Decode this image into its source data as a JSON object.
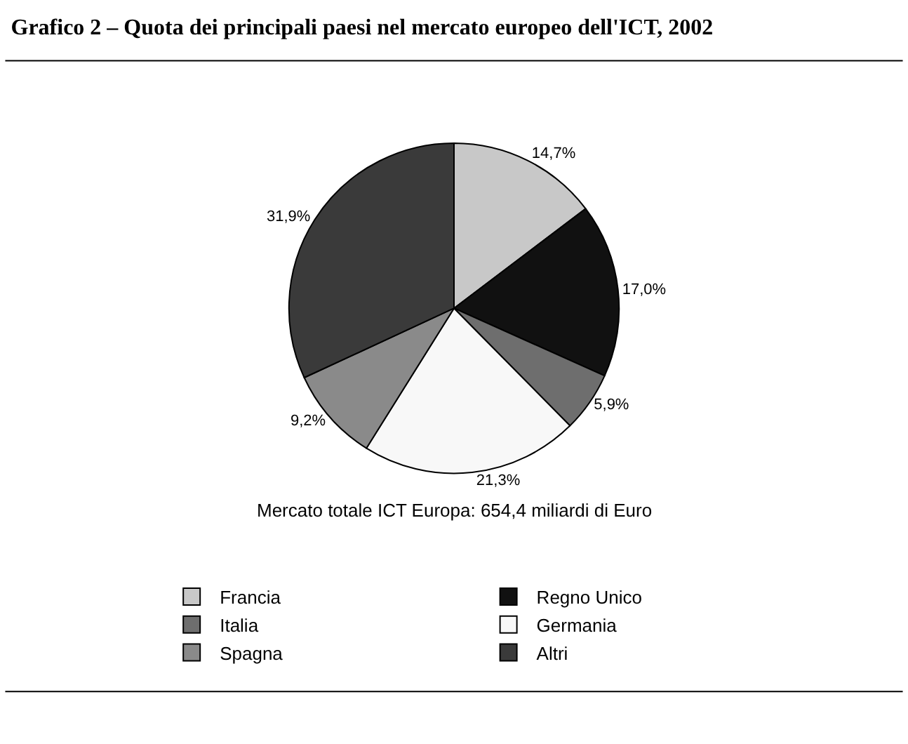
{
  "chart_data": {
    "type": "pie",
    "title": "Grafico 2 – Quota dei principali paesi nel mercato europeo dell'ICT, 2002",
    "subtitle": "Mercato totale ICT Europa: 654,4 miliardi di Euro",
    "categories": [
      "Francia",
      "Regno Unico",
      "Italia",
      "Germania",
      "Spagna",
      "Altri"
    ],
    "values": [
      14.7,
      17.0,
      5.9,
      21.3,
      9.2,
      31.9
    ],
    "value_labels": [
      "14,7%",
      "17,0%",
      "5,9%",
      "21,3%",
      "9,2%",
      "31,9%"
    ],
    "colors": [
      "#c8c8c8",
      "#111111",
      "#6e6e6e",
      "#f8f8f8",
      "#8a8a8a",
      "#3a3a3a"
    ],
    "legend": "bottom"
  }
}
